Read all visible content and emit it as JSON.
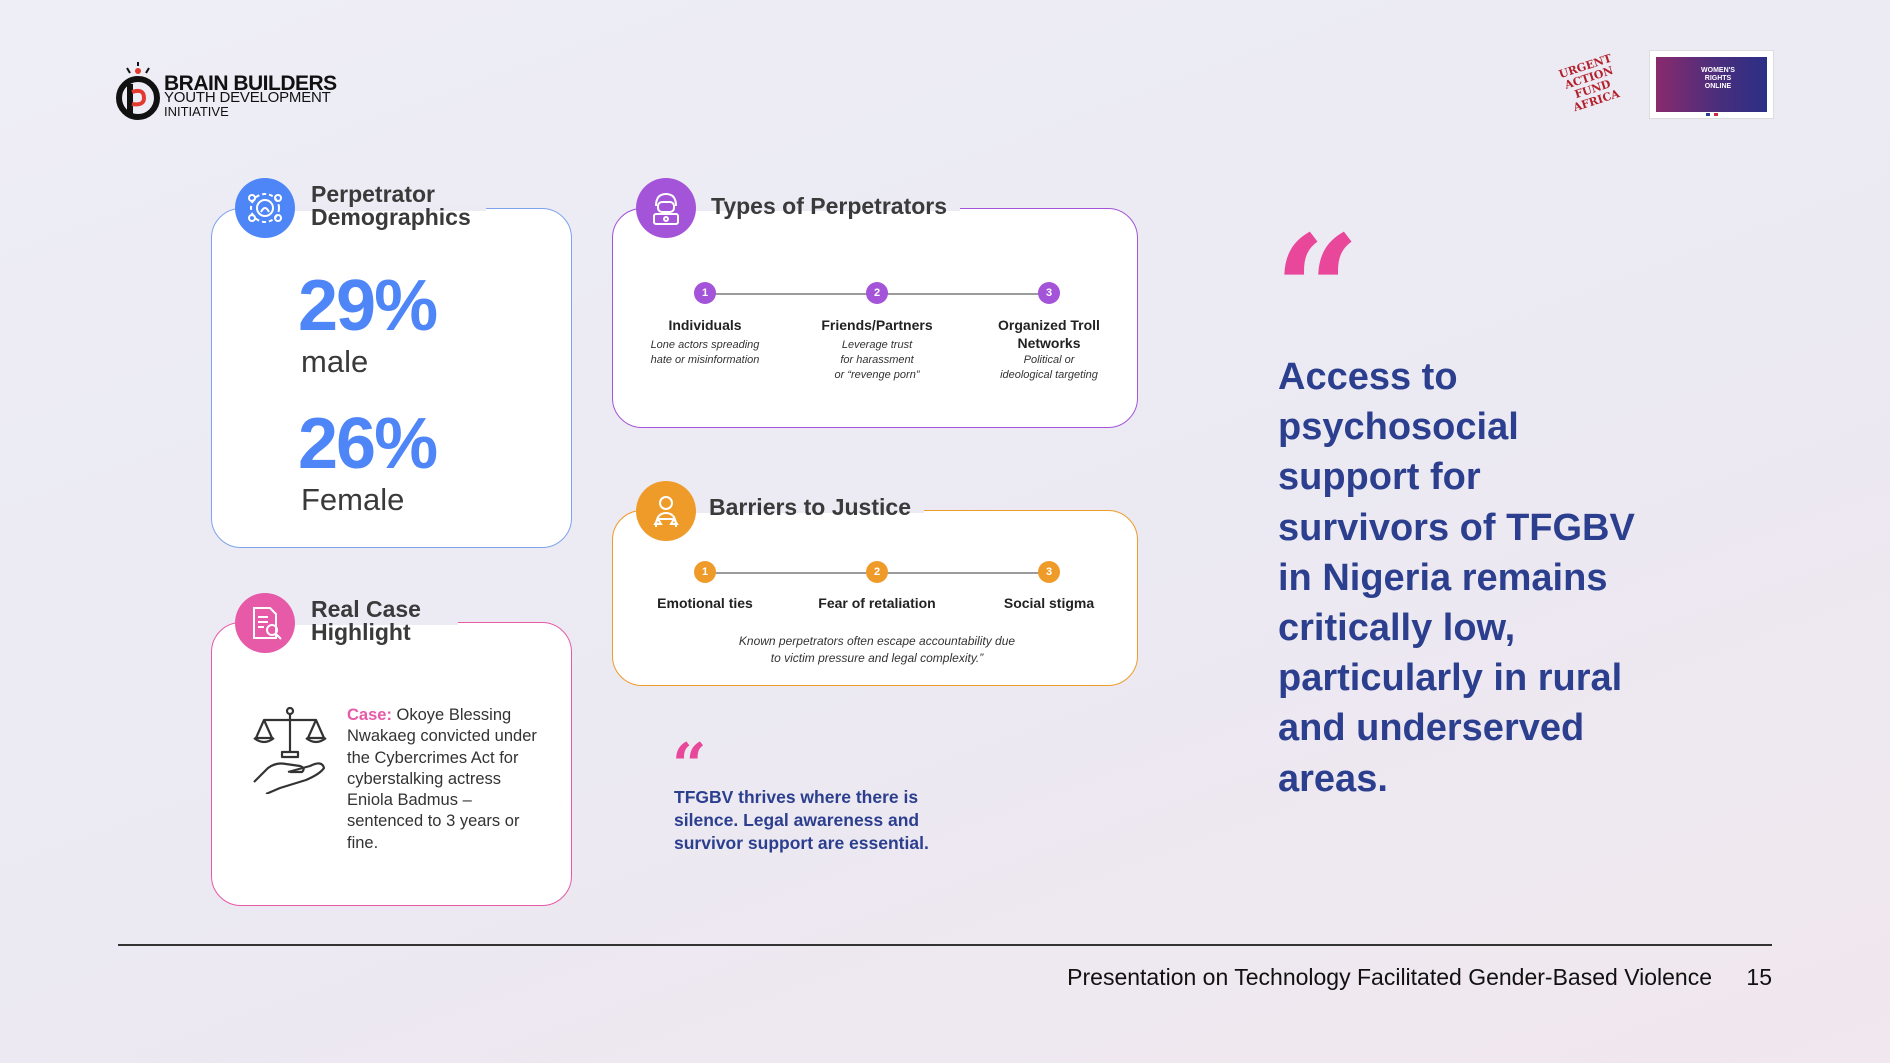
{
  "header": {
    "logo": {
      "line1": "BRAIN BUILDERS",
      "line2": "YOUTH DEVELOPMENT",
      "line3": "INITIATIVE",
      "icon": "brain-builders-logo-icon"
    },
    "partner1": {
      "text": "URGENT ACTION FUND AFRICA",
      "icon": "urgent-action-fund-africa-logo"
    },
    "partner2": {
      "text": "WOMEN'S RIGHTS ONLINE",
      "icon": "womens-rights-online-logo"
    }
  },
  "demographics": {
    "title_line1": "Perpetrator",
    "title_line2": "Demographics",
    "icon": "demographics-icon",
    "stats": [
      {
        "value": "29%",
        "label": "male"
      },
      {
        "value": "26%",
        "label": "Female"
      }
    ],
    "accent": "#4f86f7"
  },
  "types": {
    "title": "Types of Perpetrators",
    "icon": "hacker-icon",
    "accent": "#a454d8",
    "items": [
      {
        "num": "1",
        "label": "Individuals",
        "desc1": "Lone actors spreading",
        "desc2": "hate or misinformation",
        "desc3": ""
      },
      {
        "num": "2",
        "label": "Friends/Partners",
        "desc1": "Leverage trust",
        "desc2": "for harassment",
        "desc3": "or “revenge porn”"
      },
      {
        "num": "3",
        "label": "Organized Troll Networks",
        "desc1": "Political or",
        "desc2": "ideological targeting",
        "desc3": ""
      }
    ]
  },
  "barriers": {
    "title": "Barriers to Justice",
    "icon": "judge-icon",
    "accent": "#ef9b2a",
    "items": [
      {
        "num": "1",
        "label": "Emotional ties"
      },
      {
        "num": "2",
        "label": "Fear of retaliation"
      },
      {
        "num": "3",
        "label": "Social stigma"
      }
    ],
    "note_line1": "Known perpetrators often escape accountability due",
    "note_line2": "to victim pressure and legal complexity.”"
  },
  "case": {
    "title_line1": "Real Case",
    "title_line2": "Highlight",
    "icon": "document-search-icon",
    "illustration": "scales-of-justice-icon",
    "accent": "#e65aa8",
    "label": "Case:",
    "text": "Okoye Blessing Nwakaeg convicted under the Cybercrimes Act for cyberstalking actress Eniola Badmus – sentenced to 3 years or fine."
  },
  "small_quote": {
    "mark": "“",
    "text": "TFGBV thrives where there is silence. Legal awareness and survivor support are essential."
  },
  "big_quote": {
    "mark": "“",
    "text": "Access to psychosocial support for survivors of TFGBV in Nigeria remains critically low, particularly in rural and underserved areas."
  },
  "footer": {
    "title": "Presentation on Technology Facilitated Gender-Based Violence",
    "page": "15"
  },
  "colors": {
    "quote_text": "#2c3f8f",
    "quote_mark": "#e8479a"
  }
}
